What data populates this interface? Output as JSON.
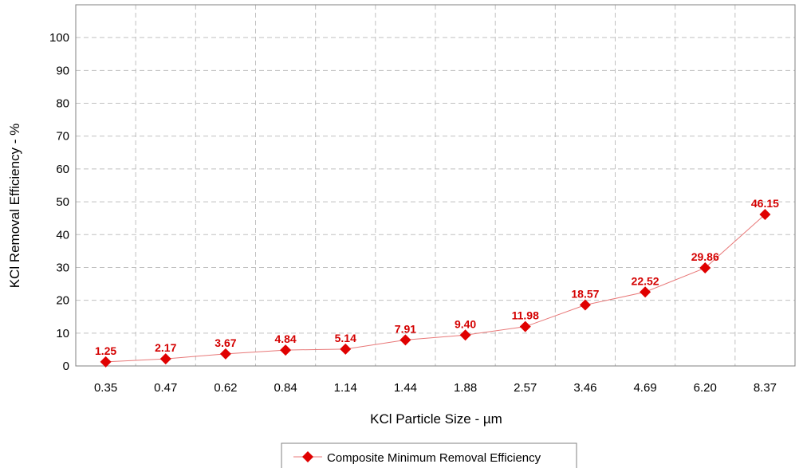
{
  "chart_data": {
    "type": "line",
    "title": "",
    "xlabel": "KCl Particle Size - µm",
    "ylabel": "KCl Removal Efficiency - %",
    "categories": [
      "0.35",
      "0.47",
      "0.62",
      "0.84",
      "1.14",
      "1.44",
      "1.88",
      "2.57",
      "3.46",
      "4.69",
      "6.20",
      "8.37"
    ],
    "series": [
      {
        "name": "Composite Minimum Removal Efficiency",
        "values": [
          1.25,
          2.17,
          3.67,
          4.84,
          5.14,
          7.91,
          9.4,
          11.98,
          18.57,
          22.52,
          29.86,
          46.15
        ],
        "data_labels": [
          "1.25",
          "2.17",
          "3.67",
          "4.84",
          "5.14",
          "7.91",
          "9.40",
          "11.98",
          "18.57",
          "22.52",
          "29.86",
          "46.15"
        ]
      }
    ],
    "ylim": [
      0,
      110
    ],
    "yticks": [
      "0",
      "10",
      "20",
      "30",
      "40",
      "50",
      "60",
      "70",
      "80",
      "90",
      "100"
    ],
    "grid": true,
    "legend_position": "bottom-center",
    "colors": {
      "series": "#e00000",
      "line": "#e87878",
      "grid": "#c0c0c0",
      "frame": "#808080",
      "label": "#d40000"
    }
  }
}
